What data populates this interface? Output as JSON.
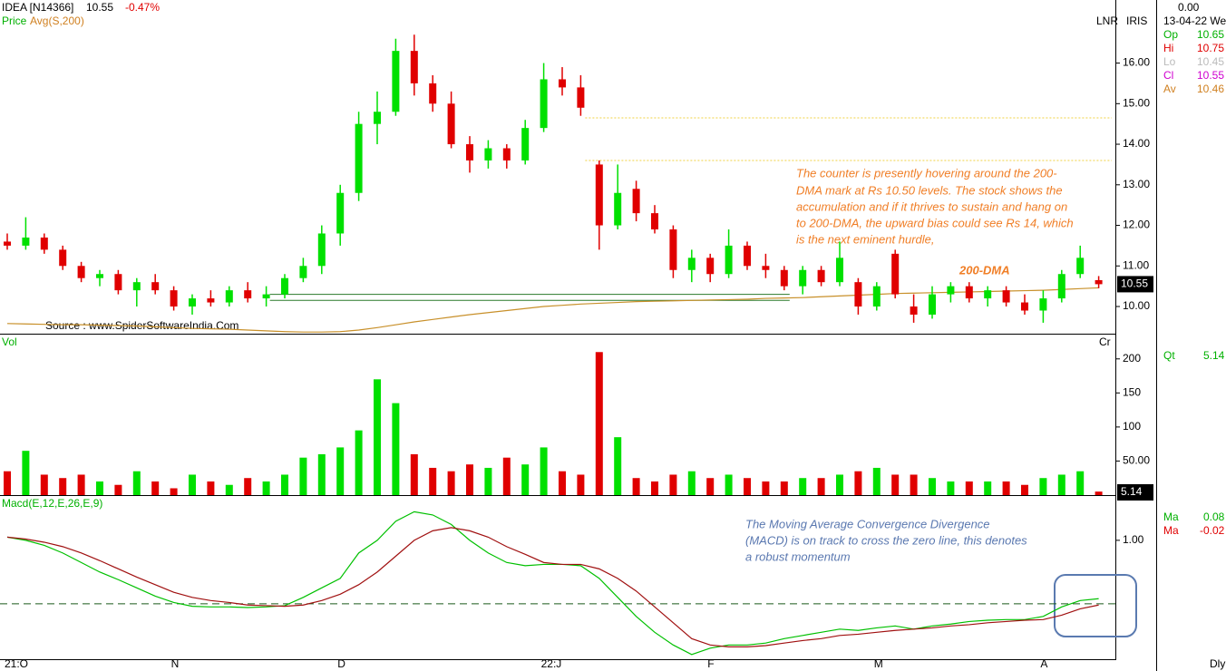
{
  "header": {
    "symbol": "IDEA [N14366]",
    "price": "10.55",
    "change": "-0.47%",
    "price_label": "Price",
    "source": "Source : www.SpiderSoftwareIndia.Com",
    "lnr": "LNR",
    "iris": "IRIS",
    "vol": "Vol",
    "cr": "Cr",
    "macd": "Macd(E,12,E,26,E,9)",
    "period": "Dly",
    "volume_last": "5.14"
  },
  "side": {
    "top": "0.00",
    "date": "13-04-22 We",
    "rows": [
      {
        "label": "Op",
        "value": "10.65"
      },
      {
        "label": "Hi",
        "value": "10.75"
      },
      {
        "label": "Lo",
        "value": "10.45"
      },
      {
        "label": "Cl",
        "value": "10.55"
      },
      {
        "label": "Av",
        "value": "10.46"
      }
    ],
    "qt": {
      "label": "Qt",
      "value": "5.14"
    },
    "ma": [
      {
        "label": "Ma",
        "value": "0.08"
      },
      {
        "label": "Ma",
        "value": "-0.02"
      }
    ]
  },
  "annotations": {
    "price": [
      "The counter is presently hovering around the 200-",
      "DMA mark at Rs 10.50 levels. The stock shows the",
      "accumulation and if it thrives to sustain and hang on",
      "to 200-DMA, the upward bias could see Rs 14, which",
      "is the next eminent hurdle,"
    ],
    "dma": "200-DMA",
    "macd": [
      "The Moving Average Convergence Divergence",
      "(MACD) is on track to cross the zero line, this denotes",
      "a robust momentum"
    ]
  },
  "chart_data": [
    {
      "type": "candlestick",
      "up_color": "#00e000",
      "down_color": "#e00000",
      "categories": [
        "21:O",
        null,
        null,
        null,
        null,
        null,
        null,
        null,
        null,
        "N",
        null,
        null,
        null,
        null,
        null,
        null,
        null,
        null,
        "D",
        null,
        null,
        null,
        null,
        null,
        null,
        null,
        null,
        null,
        null,
        "22:J",
        null,
        null,
        null,
        null,
        null,
        null,
        null,
        null,
        "F",
        null,
        null,
        null,
        null,
        null,
        null,
        null,
        null,
        "M",
        null,
        null,
        null,
        null,
        null,
        null,
        null,
        null,
        "A",
        null,
        null,
        null
      ],
      "open": [
        11.6,
        11.5,
        11.7,
        11.4,
        11.0,
        10.7,
        10.8,
        10.4,
        10.6,
        10.4,
        10.0,
        10.2,
        10.1,
        10.4,
        10.2,
        10.3,
        10.7,
        11.0,
        11.8,
        12.8,
        14.5,
        14.8,
        16.3,
        15.5,
        15.0,
        14.0,
        13.6,
        13.9,
        13.6,
        14.4,
        15.6,
        15.4,
        13.5,
        12.0,
        12.9,
        12.3,
        11.9,
        10.9,
        11.2,
        10.8,
        11.5,
        11.0,
        10.9,
        10.5,
        10.9,
        10.6,
        10.6,
        10.0,
        11.3,
        10.0,
        9.8,
        10.3,
        10.5,
        10.2,
        10.4,
        10.1,
        9.9,
        10.2,
        10.8,
        10.65
      ],
      "high": [
        11.8,
        12.2,
        11.8,
        11.5,
        11.1,
        10.9,
        10.9,
        10.7,
        10.8,
        10.5,
        10.3,
        10.4,
        10.5,
        10.6,
        10.5,
        10.8,
        11.2,
        12.0,
        13.0,
        14.8,
        15.3,
        16.6,
        16.7,
        15.7,
        15.3,
        14.2,
        14.1,
        14.0,
        14.6,
        16.0,
        15.9,
        15.7,
        13.6,
        13.5,
        13.1,
        12.5,
        12.0,
        11.4,
        11.3,
        11.9,
        11.6,
        11.3,
        11.0,
        11.0,
        11.0,
        11.6,
        10.7,
        10.6,
        11.4,
        10.3,
        10.5,
        10.6,
        10.6,
        10.5,
        10.5,
        10.3,
        10.4,
        10.9,
        11.5,
        10.75
      ],
      "low": [
        11.4,
        11.4,
        11.3,
        10.9,
        10.6,
        10.5,
        10.3,
        10.0,
        10.3,
        9.9,
        9.8,
        10.0,
        10.0,
        10.1,
        10.0,
        10.2,
        10.6,
        10.8,
        11.5,
        12.6,
        14.0,
        14.7,
        15.2,
        14.8,
        13.9,
        13.3,
        13.4,
        13.4,
        13.5,
        14.3,
        15.2,
        14.7,
        11.4,
        11.9,
        12.1,
        11.8,
        10.7,
        10.6,
        10.6,
        10.7,
        10.9,
        10.7,
        10.4,
        10.3,
        10.5,
        10.5,
        9.8,
        9.9,
        10.2,
        9.6,
        9.7,
        10.1,
        10.1,
        10.0,
        10.0,
        9.8,
        9.6,
        10.1,
        10.7,
        10.45
      ],
      "close": [
        11.5,
        11.7,
        11.4,
        11.0,
        10.7,
        10.8,
        10.4,
        10.6,
        10.4,
        10.0,
        10.2,
        10.1,
        10.4,
        10.2,
        10.3,
        10.7,
        11.0,
        11.8,
        12.8,
        14.5,
        14.8,
        16.3,
        15.5,
        15.0,
        14.0,
        13.6,
        13.9,
        13.6,
        14.4,
        15.6,
        15.4,
        14.9,
        12.0,
        12.8,
        12.3,
        11.9,
        10.9,
        11.2,
        10.8,
        11.5,
        11.0,
        10.9,
        10.5,
        10.9,
        10.6,
        11.2,
        10.0,
        10.5,
        10.3,
        9.8,
        10.3,
        10.5,
        10.2,
        10.4,
        10.1,
        9.9,
        10.2,
        10.8,
        11.2,
        10.55
      ],
      "ma": {
        "name": "Avg(S,200)",
        "color": "#c8902a",
        "values": [
          9.58,
          9.57,
          9.56,
          9.55,
          9.55,
          9.54,
          9.53,
          9.52,
          9.5,
          9.48,
          9.46,
          9.45,
          9.44,
          9.42,
          9.4,
          9.38,
          9.37,
          9.37,
          9.38,
          9.42,
          9.48,
          9.55,
          9.62,
          9.68,
          9.74,
          9.8,
          9.85,
          9.9,
          9.95,
          10.0,
          10.03,
          10.06,
          10.08,
          10.1,
          10.12,
          10.13,
          10.14,
          10.15,
          10.16,
          10.17,
          10.18,
          10.2,
          10.21,
          10.22,
          10.24,
          10.26,
          10.28,
          10.3,
          10.32,
          10.33,
          10.34,
          10.35,
          10.36,
          10.37,
          10.38,
          10.39,
          10.4,
          10.42,
          10.44,
          10.46
        ]
      },
      "levels": [
        14.65,
        13.6
      ],
      "level_color": "#f0d040",
      "support": [
        10.3,
        10.15
      ],
      "support_color": "#2a7a2a",
      "ylim": [
        9.33,
        17.51
      ],
      "yticks": [
        {
          "value": 10,
          "label": "10.00"
        },
        {
          "value": 11,
          "label": "11.00"
        },
        {
          "value": 12,
          "label": "12.00"
        },
        {
          "value": 13,
          "label": "13.00"
        },
        {
          "value": 14,
          "label": "14.00"
        },
        {
          "value": 15,
          "label": "15.00"
        },
        {
          "value": 16,
          "label": "16.00"
        }
      ]
    },
    {
      "type": "bar",
      "up_color": "#00e000",
      "down_color": "#e00000",
      "values": [
        35,
        65,
        30,
        25,
        30,
        20,
        15,
        35,
        20,
        10,
        30,
        20,
        15,
        25,
        20,
        30,
        55,
        60,
        70,
        95,
        170,
        135,
        60,
        40,
        35,
        45,
        40,
        55,
        45,
        70,
        35,
        30,
        210,
        85,
        25,
        20,
        30,
        35,
        25,
        30,
        25,
        20,
        20,
        25,
        25,
        30,
        35,
        40,
        30,
        30,
        25,
        20,
        20,
        20,
        20,
        15,
        25,
        30,
        35,
        5.14
      ],
      "ylim": [
        0,
        233
      ],
      "yticks": [
        {
          "value": 50,
          "label": "50.00"
        },
        100,
        150,
        200
      ]
    },
    {
      "type": "line",
      "series": [
        {
          "name": "MACD",
          "color": "#00c000",
          "values": [
            1.05,
            1.0,
            0.92,
            0.8,
            0.65,
            0.5,
            0.38,
            0.25,
            0.12,
            0.02,
            -0.04,
            -0.05,
            -0.05,
            -0.06,
            -0.05,
            -0.03,
            0.1,
            0.25,
            0.4,
            0.8,
            1.0,
            1.3,
            1.45,
            1.4,
            1.25,
            1.0,
            0.8,
            0.65,
            0.6,
            0.62,
            0.62,
            0.6,
            0.4,
            0.1,
            -0.2,
            -0.45,
            -0.65,
            -0.8,
            -0.7,
            -0.65,
            -0.65,
            -0.62,
            -0.55,
            -0.5,
            -0.45,
            -0.4,
            -0.42,
            -0.38,
            -0.35,
            -0.4,
            -0.35,
            -0.32,
            -0.28,
            -0.26,
            -0.25,
            -0.25,
            -0.2,
            -0.05,
            0.05,
            0.08
          ]
        },
        {
          "name": "Signal",
          "color": "#a01010",
          "values": [
            1.05,
            1.02,
            0.97,
            0.9,
            0.8,
            0.68,
            0.55,
            0.42,
            0.3,
            0.18,
            0.1,
            0.05,
            0.02,
            -0.02,
            -0.03,
            -0.04,
            -0.02,
            0.05,
            0.15,
            0.3,
            0.5,
            0.75,
            1.0,
            1.15,
            1.2,
            1.15,
            1.05,
            0.9,
            0.78,
            0.65,
            0.62,
            0.62,
            0.55,
            0.4,
            0.2,
            -0.05,
            -0.3,
            -0.55,
            -0.65,
            -0.68,
            -0.68,
            -0.66,
            -0.62,
            -0.58,
            -0.55,
            -0.5,
            -0.48,
            -0.45,
            -0.42,
            -0.4,
            -0.38,
            -0.35,
            -0.33,
            -0.3,
            -0.28,
            -0.26,
            -0.25,
            -0.18,
            -0.08,
            -0.02
          ]
        }
      ],
      "ylim": [
        -0.86,
        1.67
      ],
      "yticks": [
        {
          "value": 1,
          "label": "1.00"
        }
      ]
    }
  ]
}
